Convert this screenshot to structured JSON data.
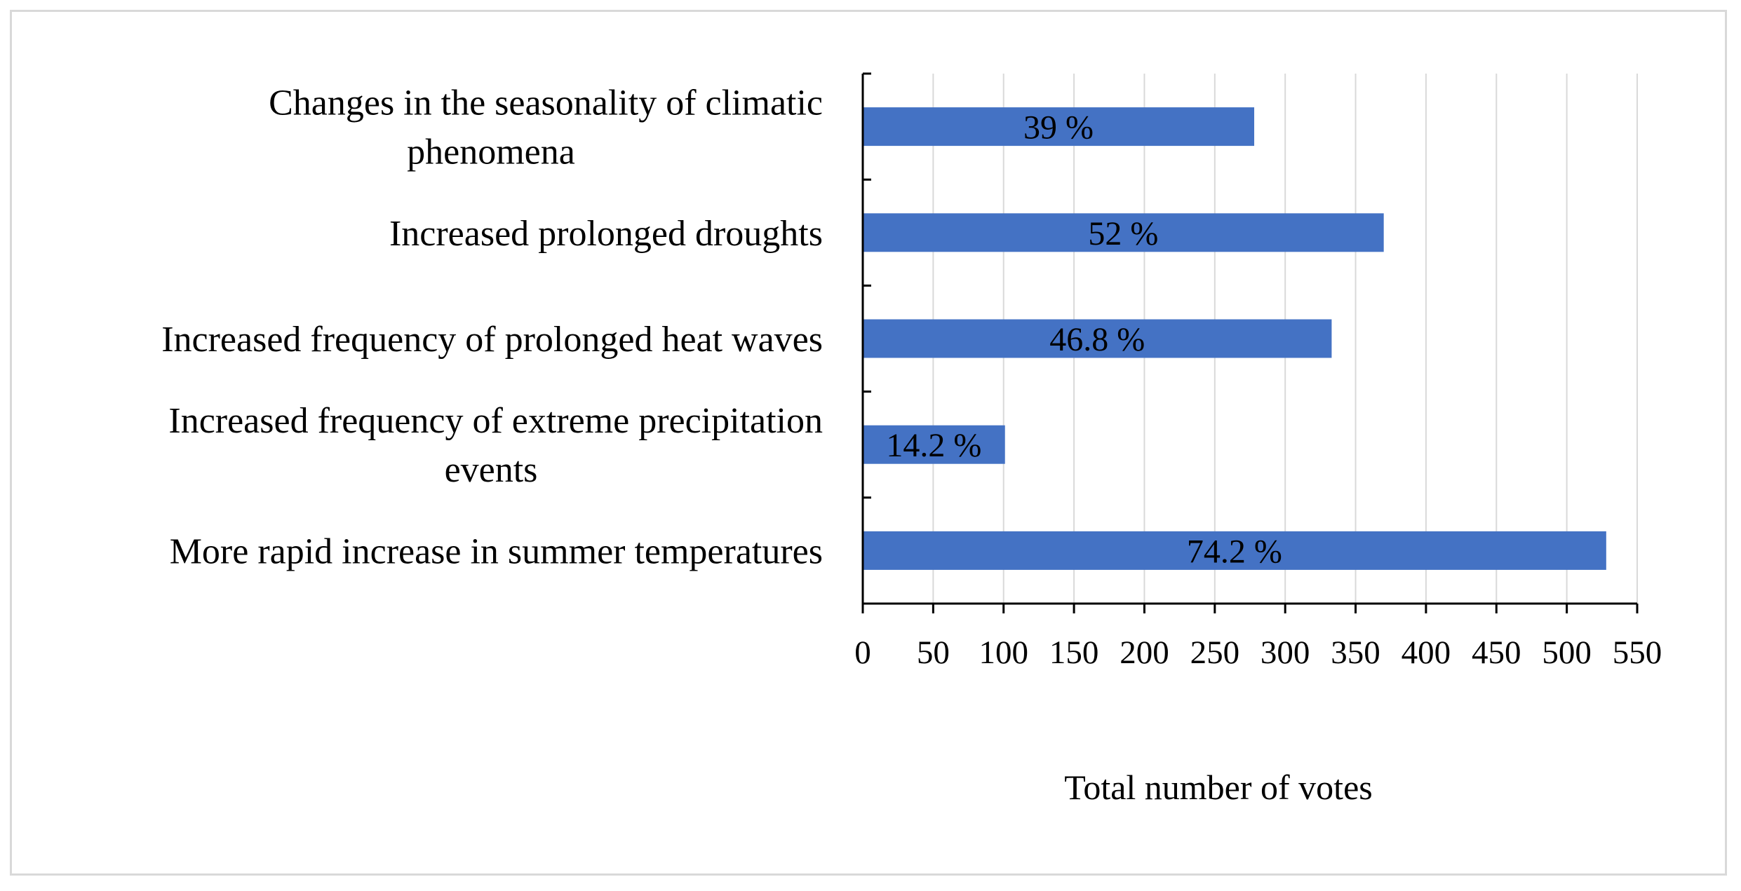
{
  "chart_data": {
    "type": "bar",
    "orientation": "horizontal",
    "categories": [
      [
        "Changes in the seasonality of climatic",
        "phenomena"
      ],
      [
        "Increased prolonged droughts"
      ],
      [
        "Increased frequency of prolonged heat waves"
      ],
      [
        "Increased frequency of extreme precipitation",
        "events"
      ],
      [
        "More rapid increase in summer temperatures"
      ]
    ],
    "values": [
      278,
      370,
      333,
      101,
      528
    ],
    "data_labels": [
      "39 %",
      "52 %",
      "46.8 %",
      "14.2 %",
      "74.2 %"
    ],
    "xticks": [
      0,
      50,
      100,
      150,
      200,
      250,
      300,
      350,
      400,
      450,
      500,
      550
    ],
    "xlim": [
      0,
      550
    ],
    "xlabel": "Total number of votes",
    "ylabel": "",
    "title": "",
    "grid": "vertical",
    "legend": "none",
    "bar_color": "#4472c4",
    "grid_color": "#d9d9d9",
    "frame_color": "#d9d9d9"
  }
}
